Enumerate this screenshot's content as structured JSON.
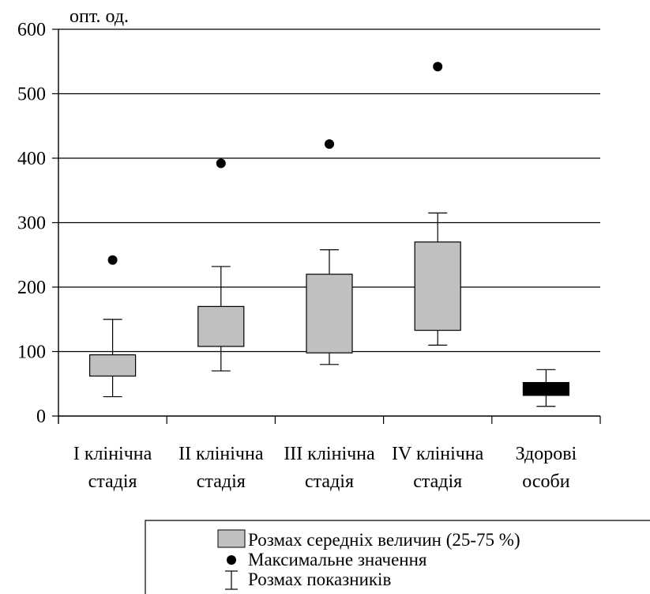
{
  "chart_data": {
    "type": "box",
    "ylabel": "опт. од.",
    "ylim": [
      0,
      600
    ],
    "y_ticks": [
      "0",
      "100",
      "200",
      "300",
      "400",
      "500",
      "600"
    ],
    "grid": true,
    "categories": [
      [
        "I клінічна",
        "стадія"
      ],
      [
        "II клінічна",
        "стадія"
      ],
      [
        "III клінічна",
        "стадія"
      ],
      [
        "IV клінічна",
        "стадія"
      ],
      [
        "Здорові",
        "особи"
      ]
    ],
    "boxes": [
      {
        "whisker_low": 30,
        "q1": 62,
        "q3": 95,
        "whisker_high": 150,
        "max": 242,
        "fill": "#c0c0c0"
      },
      {
        "whisker_low": 70,
        "q1": 108,
        "q3": 170,
        "whisker_high": 232,
        "max": 392,
        "fill": "#c0c0c0"
      },
      {
        "whisker_low": 80,
        "q1": 98,
        "q3": 220,
        "whisker_high": 258,
        "max": 422,
        "fill": "#c0c0c0"
      },
      {
        "whisker_low": 110,
        "q1": 133,
        "q3": 270,
        "whisker_high": 315,
        "max": 542,
        "fill": "#c0c0c0"
      },
      {
        "whisker_low": 15,
        "q1": 32,
        "q3": 52,
        "whisker_high": 72,
        "max": null,
        "fill": "#000000"
      }
    ],
    "legend": {
      "box_label": "Розмах середніх величин (25-75 %)",
      "max_label": "Максимальне значення",
      "range_label": "Розмах показників"
    }
  }
}
